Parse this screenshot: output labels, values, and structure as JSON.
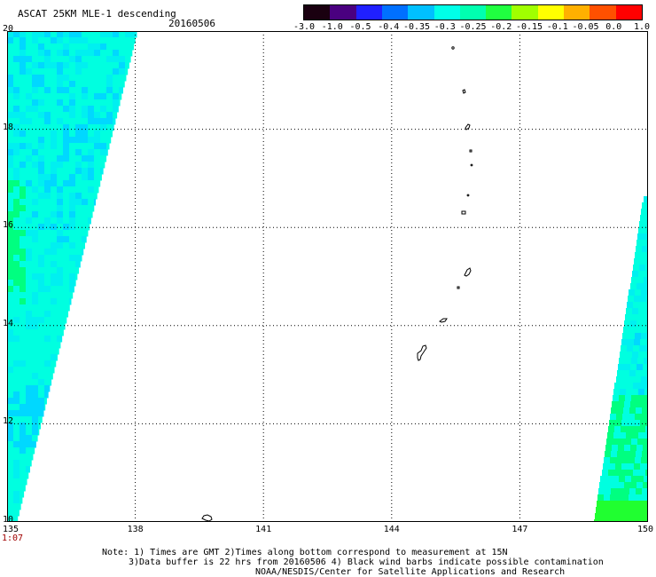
{
  "header": {
    "title": "ASCAT 25KM MLE-1 descending",
    "date": "20160506"
  },
  "colorbar": {
    "labels": [
      "-3.0",
      "-1.0",
      "-0.5",
      "-0.4",
      "-0.35",
      "-0.3",
      "-0.25",
      "-0.2",
      "-0.15",
      "-0.1",
      "-0.05",
      "0.0",
      "1.0"
    ],
    "colors": [
      "#1a0010",
      "#4a0080",
      "#2020ff",
      "#0070ff",
      "#00c0ff",
      "#00ffe8",
      "#00ffb0",
      "#20ff40",
      "#a0ff00",
      "#ffff00",
      "#ffb000",
      "#ff5000",
      "#ff0000"
    ]
  },
  "map": {
    "lat_labels": [
      "20",
      "18",
      "16",
      "14",
      "12",
      "10"
    ],
    "lon_labels": [
      "135",
      "138",
      "141",
      "144",
      "147",
      "150"
    ],
    "lat_range": [
      10,
      20
    ],
    "lon_range": [
      135,
      150
    ],
    "time_label": "1:07",
    "swath_colors": {
      "cyan": "#00ffe0",
      "aqua": "#00f0f0",
      "light_blue": "#00d8ff",
      "blue": "#0090ff",
      "green": "#00ff80",
      "bright_green": "#20ff30"
    }
  },
  "footer": {
    "note_line1": "Note: 1) Times are GMT 2)Times along bottom correspond to measurement at 15N",
    "note_line2": "3)Data buffer is 22 hrs from 20160506 4) Black wind barbs indicate possible contamination",
    "credit": "NOAA/NESDIS/Center for Satellite Applications and Research"
  }
}
